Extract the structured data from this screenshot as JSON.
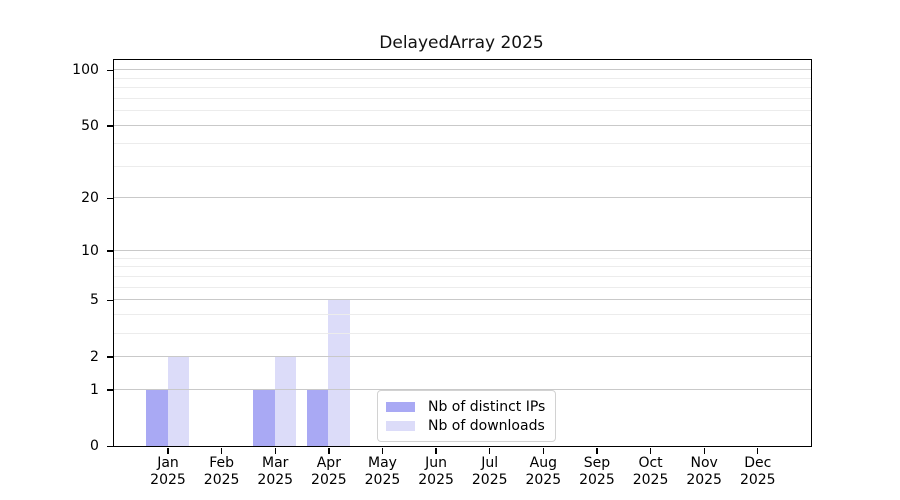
{
  "title": "DelayedArray 2025",
  "legend": {
    "items": [
      {
        "label": "Nb of distinct IPs",
        "color": "#a9a9f4"
      },
      {
        "label": "Nb of downloads",
        "color": "#dcdcf9"
      }
    ]
  },
  "y_axis": {
    "tick_labels": [
      "100",
      "50",
      "20",
      "10",
      "5",
      "2",
      "1",
      "0"
    ]
  },
  "x_axis": {
    "tick_labels_line1": [
      "Jan",
      "Feb",
      "Mar",
      "Apr",
      "May",
      "Jun",
      "Jul",
      "Aug",
      "Sep",
      "Oct",
      "Nov",
      "Dec"
    ],
    "tick_labels_line2": "2025"
  },
  "chart_data": {
    "type": "bar",
    "title": "DelayedArray 2025",
    "categories": [
      "Jan 2025",
      "Feb 2025",
      "Mar 2025",
      "Apr 2025",
      "May 2025",
      "Jun 2025",
      "Jul 2025",
      "Aug 2025",
      "Sep 2025",
      "Oct 2025",
      "Nov 2025",
      "Dec 2025"
    ],
    "xticklabel_months": [
      "Jan",
      "Feb",
      "Mar",
      "Apr",
      "May",
      "Jun",
      "Jul",
      "Aug",
      "Sep",
      "Oct",
      "Nov",
      "Dec"
    ],
    "xticklabel_year": "2025",
    "series": [
      {
        "name": "Nb of distinct IPs",
        "color": "#a9a9f4",
        "values": [
          1,
          0,
          1,
          1,
          0,
          0,
          0,
          0,
          0,
          0,
          0,
          0
        ]
      },
      {
        "name": "Nb of downloads",
        "color": "#dcdcf9",
        "values": [
          2,
          0,
          2,
          5,
          0,
          0,
          0,
          0,
          0,
          0,
          0,
          0
        ]
      }
    ],
    "yscale": "log1p",
    "ylim": [
      0,
      113
    ],
    "yticks": [
      0,
      1,
      2,
      5,
      10,
      20,
      50,
      100
    ],
    "yticks_minor": [
      3,
      4,
      6,
      7,
      8,
      9,
      30,
      40,
      60,
      70,
      80,
      90
    ],
    "grid": "horizontal, drawn above bars",
    "legend_position": "lower center, inside plot",
    "xlabel": "",
    "ylabel": ""
  }
}
